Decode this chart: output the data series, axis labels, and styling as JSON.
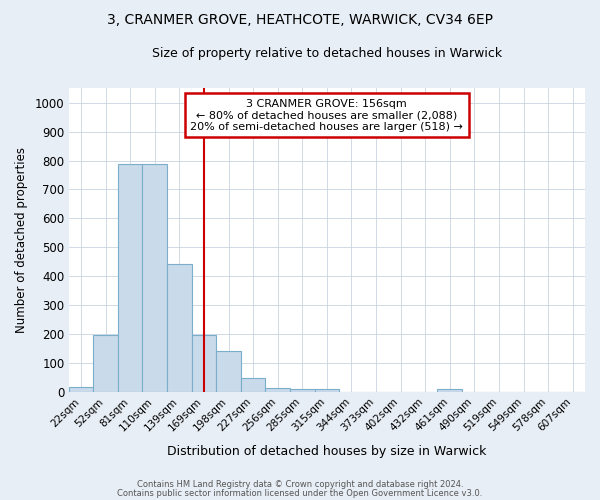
{
  "title_line1": "3, CRANMER GROVE, HEATHCOTE, WARWICK, CV34 6EP",
  "title_line2": "Size of property relative to detached houses in Warwick",
  "xlabel": "Distribution of detached houses by size in Warwick",
  "ylabel": "Number of detached properties",
  "bar_labels": [
    "22sqm",
    "52sqm",
    "81sqm",
    "110sqm",
    "139sqm",
    "169sqm",
    "198sqm",
    "227sqm",
    "256sqm",
    "285sqm",
    "315sqm",
    "344sqm",
    "373sqm",
    "402sqm",
    "432sqm",
    "461sqm",
    "490sqm",
    "519sqm",
    "549sqm",
    "578sqm",
    "607sqm"
  ],
  "bar_values": [
    18,
    197,
    789,
    789,
    443,
    197,
    143,
    50,
    15,
    10,
    10,
    0,
    0,
    0,
    0,
    10,
    0,
    0,
    0,
    0,
    0
  ],
  "bar_color": "#c9daea",
  "bar_edge_color": "#7aaecb",
  "property_line_x": 5.0,
  "annotation_line1": "3 CRANMER GROVE: 156sqm",
  "annotation_line2": "← 80% of detached houses are smaller (2,088)",
  "annotation_line3": "20% of semi-detached houses are larger (518) →",
  "annotation_box_color": "#ffffff",
  "annotation_box_edge": "#cc0000",
  "vline_color": "#cc0000",
  "grid_color": "#c8d4e0",
  "plot_bg_color": "#ffffff",
  "figure_bg_color": "#e8eef5",
  "ylim": [
    0,
    1050
  ],
  "yticks": [
    0,
    100,
    200,
    300,
    400,
    500,
    600,
    700,
    800,
    900,
    1000
  ],
  "footer_line1": "Contains HM Land Registry data © Crown copyright and database right 2024.",
  "footer_line2": "Contains public sector information licensed under the Open Government Licence v3.0."
}
